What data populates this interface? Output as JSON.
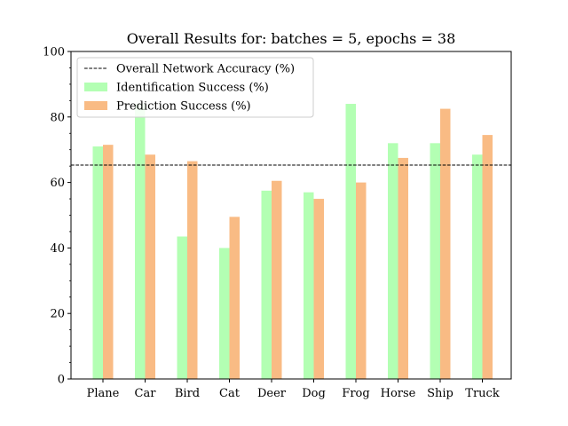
{
  "chart_data": {
    "type": "bar",
    "title": "Overall Results for: batches = 5, epochs = 38",
    "xlabel": "",
    "ylabel": "",
    "ylim": [
      0,
      100
    ],
    "yticks": [
      "0",
      "20",
      "40",
      "60",
      "80",
      "100"
    ],
    "categories": [
      "Plane",
      "Car",
      "Bird",
      "Cat",
      "Deer",
      "Dog",
      "Frog",
      "Horse",
      "Ship",
      "Truck"
    ],
    "series": [
      {
        "name": "Identification Success (%)",
        "color": "#b3ffb3",
        "values": [
          71,
          84,
          43.5,
          40,
          57.5,
          57,
          84,
          72,
          72,
          68.5
        ]
      },
      {
        "name": "Prediction Success (%)",
        "color": "#f9bb84",
        "values": [
          71.5,
          68.5,
          66.5,
          49.5,
          60.5,
          55,
          60,
          67.5,
          82.5,
          74.5
        ]
      }
    ],
    "reference_line": {
      "name": "Overall Network Accuracy (%)",
      "value": 65.3,
      "style": "dashed",
      "color": "#000000"
    },
    "legend_position": "top-left",
    "grid": false
  }
}
